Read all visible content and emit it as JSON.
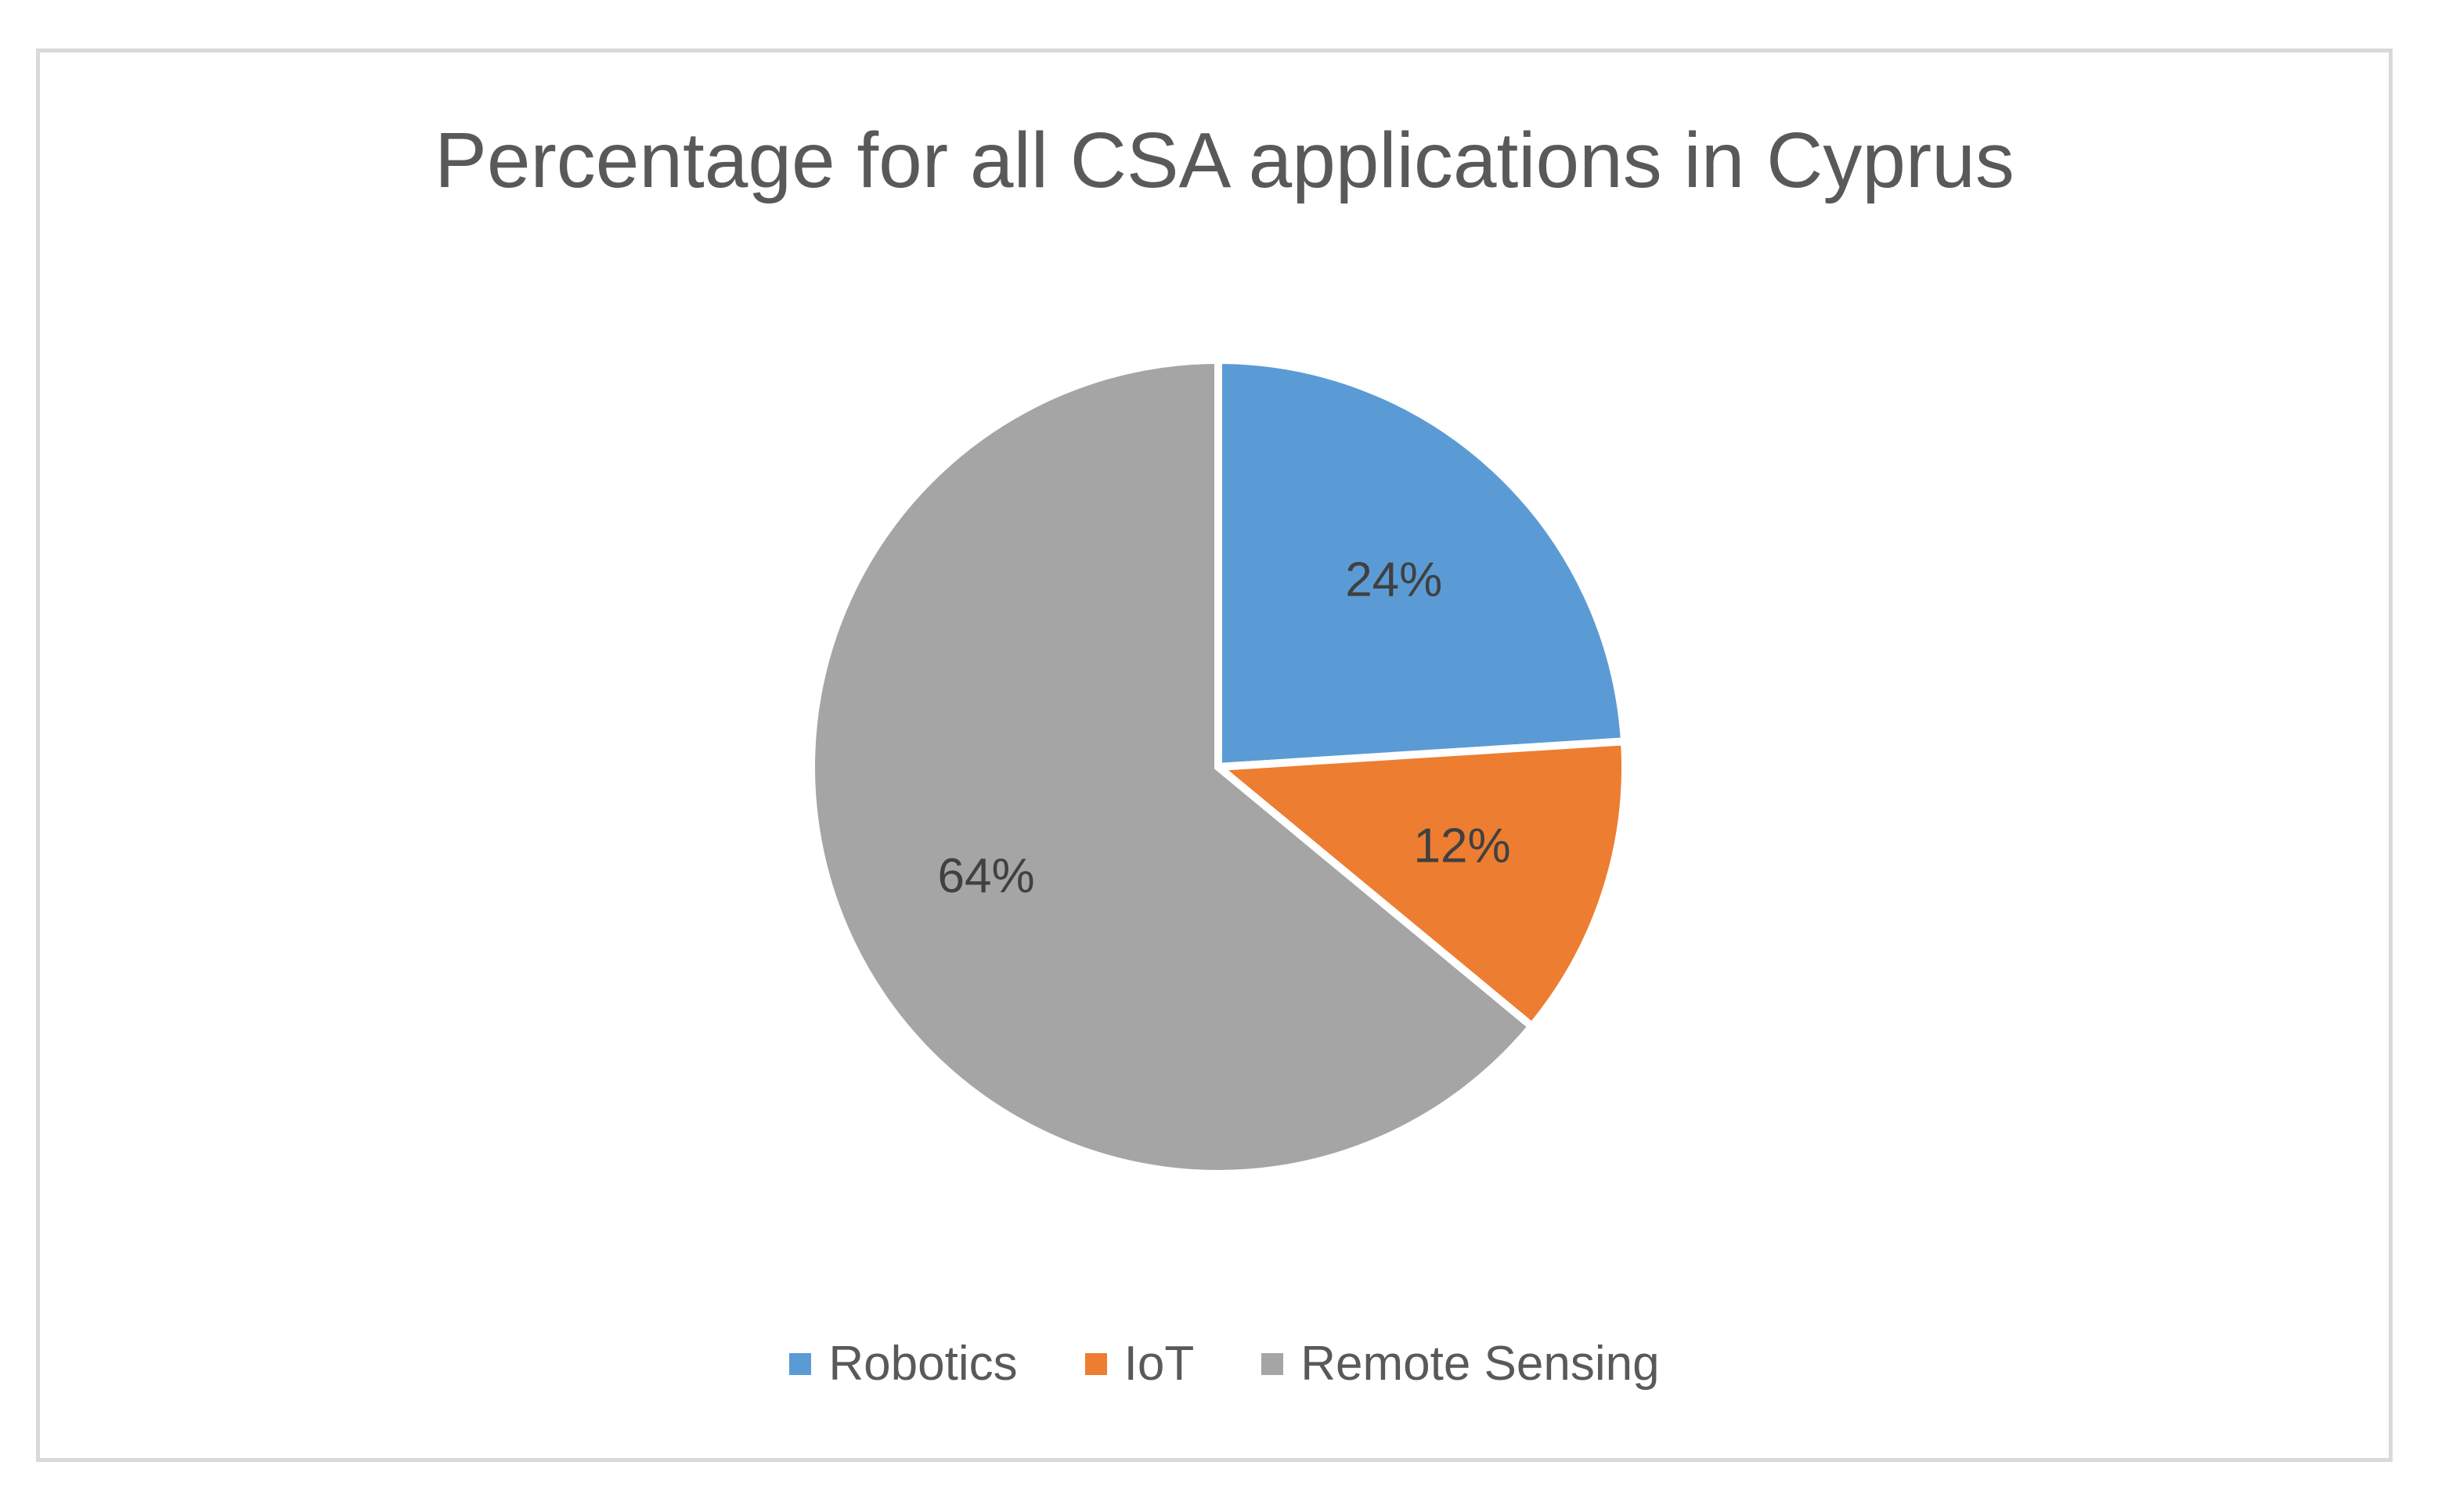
{
  "chart_data": {
    "type": "pie",
    "title": "Percentage for all CSA applications in Cyprus",
    "categories": [
      "Robotics",
      "IoT",
      "Remote Sensing"
    ],
    "values": [
      24,
      12,
      64
    ],
    "data_labels": [
      "24%",
      "12%",
      "64%"
    ],
    "colors": [
      "#5b9bd5",
      "#ed7d31",
      "#a5a5a5"
    ],
    "legend_position": "bottom",
    "start_angle": "12 o'clock, clockwise"
  }
}
